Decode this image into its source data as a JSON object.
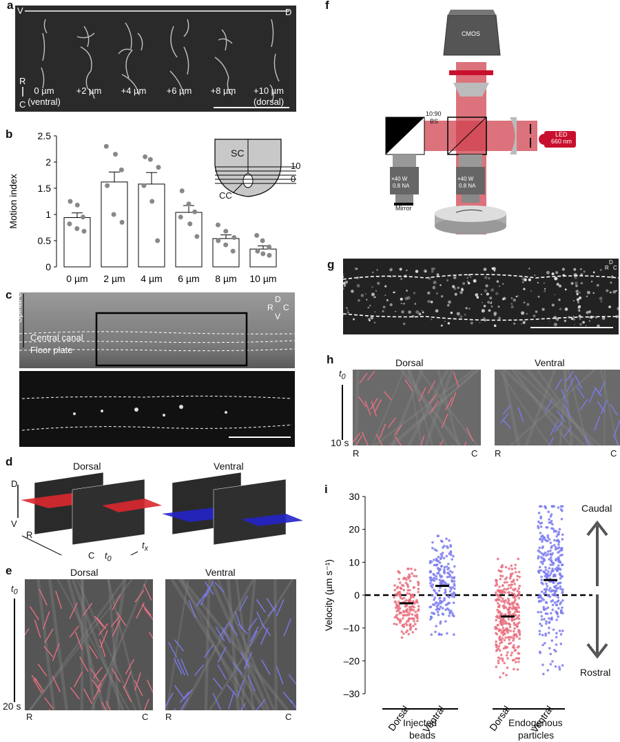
{
  "panels": {
    "a": "a",
    "b": "b",
    "c": "c",
    "d": "d",
    "e": "e",
    "f": "f",
    "g": "g",
    "h": "h",
    "i": "i"
  },
  "a": {
    "axis_v": "V",
    "axis_d": "D",
    "axis_r": "R",
    "axis_c": "C",
    "slices": [
      {
        "l1": "0 µm",
        "l2": "(ventral)"
      },
      {
        "l1": "+2 µm",
        "l2": ""
      },
      {
        "l1": "+4 µm",
        "l2": ""
      },
      {
        "l1": "+6 µm",
        "l2": ""
      },
      {
        "l1": "+8 µm",
        "l2": ""
      },
      {
        "l1": "+10 µm",
        "l2": "(dorsal)"
      }
    ]
  },
  "b": {
    "inset_sc": "SC",
    "inset_cc": "CC",
    "inset_10": "10",
    "inset_0": "0"
  },
  "c": {
    "spinal_cord": "Spinal cord",
    "central_canal": "Central canal",
    "floor_plate": "Floor plate",
    "compass_d": "D",
    "compass_v": "V",
    "compass_r": "R",
    "compass_c": "C"
  },
  "d": {
    "dorsal": "Dorsal",
    "ventral": "Ventral",
    "ax_d": "D",
    "ax_v": "V",
    "ax_r": "R",
    "ax_c": "C",
    "t0": "t",
    "t0_sub": "0",
    "tx": "t",
    "tx_sub": "x"
  },
  "e": {
    "dorsal": "Dorsal",
    "ventral": "Ventral",
    "t0": "t",
    "t0_sub": "0",
    "time": "20 s",
    "r1": "R",
    "c1": "C",
    "r2": "R",
    "c2": "C"
  },
  "f": {
    "cmos": "CMOS",
    "bs1": "10:90",
    "bs2": "BS",
    "obj_left1": "×40 W",
    "obj_left2": "0.8 NA",
    "obj_right1": "×40 W",
    "obj_right2": "0.8 NA",
    "mirror": "Mirror",
    "led1": "LED",
    "led2": "660 nm"
  },
  "g": {
    "compass_d": "D",
    "compass_r": "R",
    "compass_c": "C"
  },
  "h": {
    "dorsal": "Dorsal",
    "ventral": "Ventral",
    "t0": "t",
    "t0_sub": "0",
    "time": "10 s",
    "r1": "R",
    "c1": "C",
    "r2": "R",
    "c2": "C"
  },
  "i": {
    "caudal": "Caudal",
    "rostral": "Rostral",
    "group1_l1": "Injected",
    "group1_l2": "beads",
    "group2_l1": "Endogenous",
    "group2_l2": "particles"
  },
  "colors": {
    "dorsal": "#e8707f",
    "ventral": "#7b7bf0",
    "led": "#c8102e",
    "beam": "#d0434f"
  },
  "chart_data": [
    {
      "type": "bar",
      "categories": [
        "0 µm",
        "2 µm",
        "4 µm",
        "6 µm",
        "8 µm",
        "10 µm"
      ],
      "values": [
        0.94,
        1.62,
        1.58,
        1.04,
        0.54,
        0.34
      ],
      "errors": [
        0.09,
        0.19,
        0.22,
        0.13,
        0.07,
        0.06
      ],
      "points": [
        [
          1.25,
          1.18,
          0.95,
          0.82,
          0.73,
          0.68
        ],
        [
          2.3,
          2.15,
          1.85,
          1.55,
          1.0,
          0.85
        ],
        [
          2.1,
          2.05,
          1.9,
          1.55,
          1.25,
          0.5
        ],
        [
          1.45,
          1.2,
          1.05,
          0.95,
          0.82,
          0.58
        ],
        [
          0.8,
          0.68,
          0.56,
          0.5,
          0.42,
          0.3
        ],
        [
          0.6,
          0.5,
          0.38,
          0.3,
          0.25,
          0.22
        ]
      ],
      "ylabel": "Motion index",
      "yticks": [
        "0",
        "0.5",
        "1",
        "1.5",
        "2",
        "2.5"
      ],
      "ylim": [
        0,
        2.5
      ]
    },
    {
      "type": "scatter",
      "groups": [
        "Dorsal",
        "Ventral",
        "Dorsal",
        "Ventral"
      ],
      "medians": [
        -2.5,
        2.8,
        -6.5,
        4.6
      ],
      "spread": [
        [
          -14,
          8
        ],
        [
          -12,
          18
        ],
        [
          -25,
          11
        ],
        [
          -24,
          27
        ]
      ],
      "ylabel": "Velocity (µm s⁻¹)",
      "yticks": [
        "30",
        "20",
        "10",
        "0",
        "–10",
        "–20",
        "–30"
      ],
      "ylim": [
        -30,
        30
      ]
    }
  ]
}
